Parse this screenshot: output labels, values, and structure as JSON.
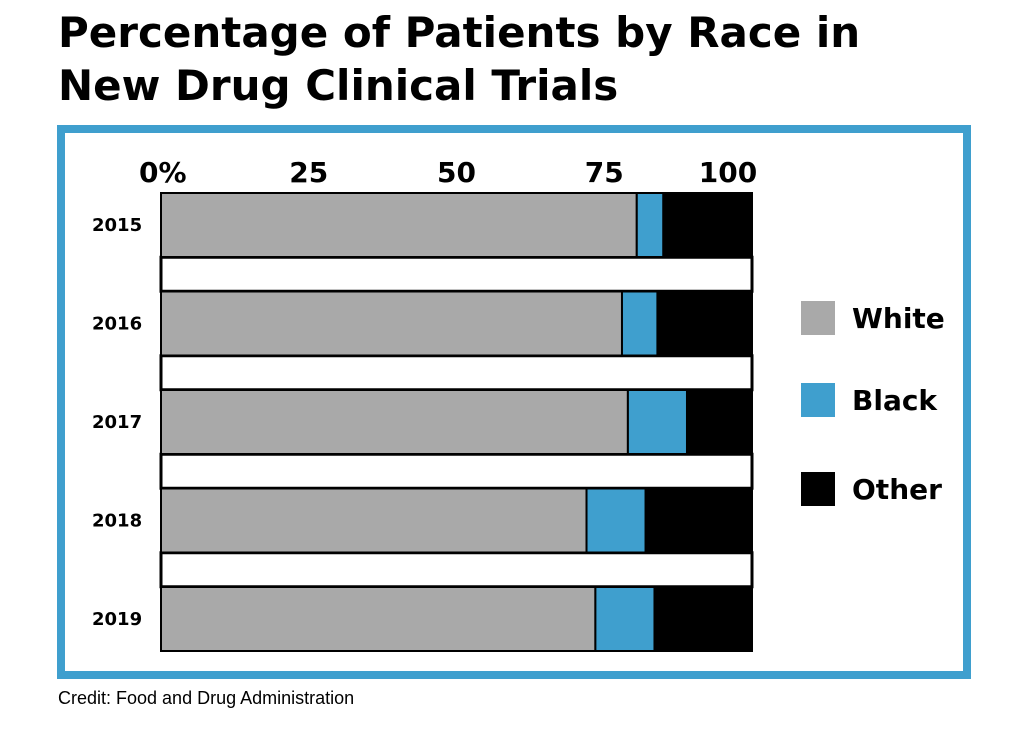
{
  "title_lines": [
    "Percentage of Patients by Race in",
    "New Drug Clinical Trials"
  ],
  "credit": "Credit: Food and Drug Administration",
  "colors": {
    "frame": "#3f9fce",
    "White": "#a9a9a9",
    "Black": "#3f9fce",
    "Other": "#000000",
    "separator_fill": "#ffffff",
    "outline": "#000000"
  },
  "chart_data": {
    "type": "bar",
    "orientation": "horizontal",
    "stacked": true,
    "title": "Percentage of Patients by Race in New Drug Clinical Trials",
    "categories": [
      "2015",
      "2016",
      "2017",
      "2018",
      "2019"
    ],
    "series": [
      {
        "name": "White",
        "values": [
          80.5,
          78,
          79,
          72,
          73.5
        ]
      },
      {
        "name": "Black",
        "values": [
          4.5,
          6,
          10,
          10,
          10
        ]
      },
      {
        "name": "Other",
        "values": [
          15,
          16,
          11,
          18,
          16.5
        ]
      }
    ],
    "x_ticks": [
      "0%",
      "25",
      "50",
      "75",
      "100"
    ],
    "x_tick_values": [
      0,
      25,
      50,
      75,
      100
    ],
    "xlim": [
      0,
      100
    ],
    "x_axis_position": "top",
    "legend": [
      "White",
      "Black",
      "Other"
    ],
    "legend_position": "right",
    "grid": false
  }
}
